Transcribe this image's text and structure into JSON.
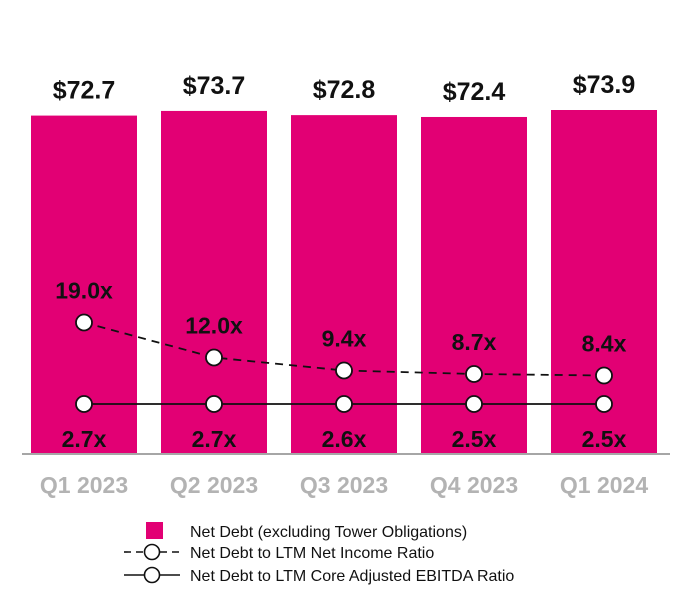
{
  "chart_data": {
    "type": "bar",
    "title": "",
    "xlabel": "",
    "ylabel": "",
    "categories": [
      "Q1 2023",
      "Q2 2023",
      "Q3 2023",
      "Q4 2023",
      "Q1 2024"
    ],
    "series": [
      {
        "name": "Net Debt (excluding Tower Obligations)",
        "kind": "bar",
        "color": "#e20074",
        "values": [
          72.7,
          73.7,
          72.8,
          72.4,
          73.9
        ],
        "labels": [
          "$72.7",
          "$73.7",
          "$72.8",
          "$72.4",
          "$73.9"
        ]
      },
      {
        "name": "Net Debt to LTM Net Income Ratio",
        "kind": "line",
        "style": "dashed",
        "color": "#111111",
        "values": [
          19.0,
          12.0,
          9.4,
          8.7,
          8.4
        ],
        "labels": [
          "19.0x",
          "12.0x",
          "9.4x",
          "8.7x",
          "8.4x"
        ]
      },
      {
        "name": "Net Debt to LTM Core Adjusted EBITDA Ratio",
        "kind": "line",
        "style": "solid",
        "color": "#111111",
        "values": [
          2.7,
          2.7,
          2.6,
          2.5,
          2.5
        ],
        "labels": [
          "2.7x",
          "2.7x",
          "2.6x",
          "2.5x",
          "2.5x"
        ]
      }
    ],
    "legend_position": "bottom",
    "grid": false
  }
}
